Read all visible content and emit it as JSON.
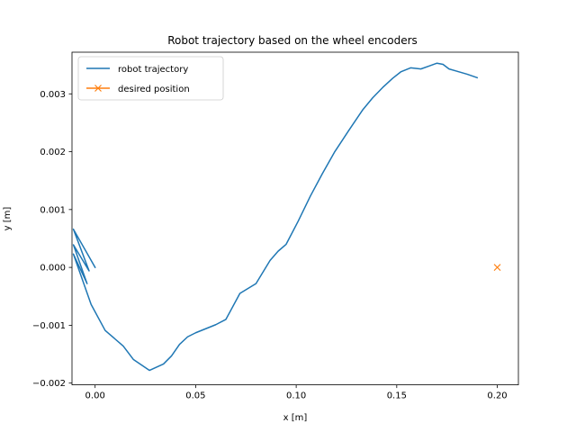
{
  "chart_data": {
    "type": "line",
    "title": "Robot trajectory based on the wheel encoders",
    "xlabel": "x [m]",
    "ylabel": "y [m]",
    "xlim": [
      -0.0115,
      0.2105
    ],
    "ylim": [
      -0.00203,
      0.00372
    ],
    "x_ticks": [
      0.0,
      0.05,
      0.1,
      0.15,
      0.2
    ],
    "x_tick_labels": [
      "0.00",
      "0.05",
      "0.10",
      "0.15",
      "0.20"
    ],
    "y_ticks": [
      -0.002,
      -0.001,
      0.0,
      0.001,
      0.002,
      0.003
    ],
    "y_tick_labels": [
      "−0.002",
      "−0.001",
      "0.000",
      "0.001",
      "0.002",
      "0.003"
    ],
    "grid": false,
    "legend_position": "upper-left",
    "series": [
      {
        "name": "robot trajectory",
        "color": "#1f77b4",
        "marker": "none",
        "x": [
          0.0,
          -0.0108,
          -0.003,
          -0.0108,
          -0.004,
          -0.0108,
          -0.002,
          0.005,
          0.014,
          0.019,
          0.027,
          0.034,
          0.038,
          0.042,
          0.046,
          0.05,
          0.055,
          0.06,
          0.065,
          0.072,
          0.08,
          0.087,
          0.091,
          0.095,
          0.101,
          0.107,
          0.113,
          0.119,
          0.126,
          0.133,
          0.138,
          0.143,
          0.148,
          0.152,
          0.157,
          0.162,
          0.166,
          0.17,
          0.173,
          0.176,
          0.18,
          0.185,
          0.19
        ],
        "y": [
          0.0,
          0.00066,
          -6e-05,
          0.00039,
          -0.00028,
          0.00023,
          -0.00064,
          -0.00109,
          -0.00136,
          -0.00159,
          -0.00178,
          -0.00167,
          -0.00153,
          -0.00133,
          -0.0012,
          -0.00113,
          -0.00106,
          -0.00099,
          -0.0009,
          -0.00045,
          -0.00028,
          0.00012,
          0.00028,
          0.0004,
          0.0008,
          0.00123,
          0.00162,
          0.00199,
          0.00236,
          0.00272,
          0.00293,
          0.00311,
          0.00327,
          0.00338,
          0.00345,
          0.00343,
          0.00348,
          0.00353,
          0.00351,
          0.00343,
          0.00339,
          0.00334,
          0.00328
        ]
      },
      {
        "name": "desired position",
        "color": "#ff7f0e",
        "marker": "x",
        "x": [
          0.2
        ],
        "y": [
          0.0
        ]
      }
    ]
  }
}
